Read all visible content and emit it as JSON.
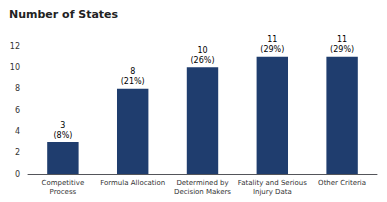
{
  "chart_data": {
    "type": "bar",
    "title": "Number of States",
    "categories": [
      "Competitive\nProcess",
      "Formula Allocation",
      "Determined by\nDecision Makers",
      "Fatality and Serious\nInjury Data",
      "Other Criteria"
    ],
    "values": [
      3,
      8,
      10,
      11,
      11
    ],
    "value_labels": [
      "3\n(8%)",
      "8\n(21%)",
      "10\n(26%)",
      "11\n(29%)",
      "11\n(29%)"
    ],
    "data_labels": true,
    "color": "#1f3d6e",
    "ylim": [
      0,
      12
    ],
    "yticks": [
      0,
      2,
      4,
      6,
      8,
      10,
      12
    ],
    "grid": false
  }
}
